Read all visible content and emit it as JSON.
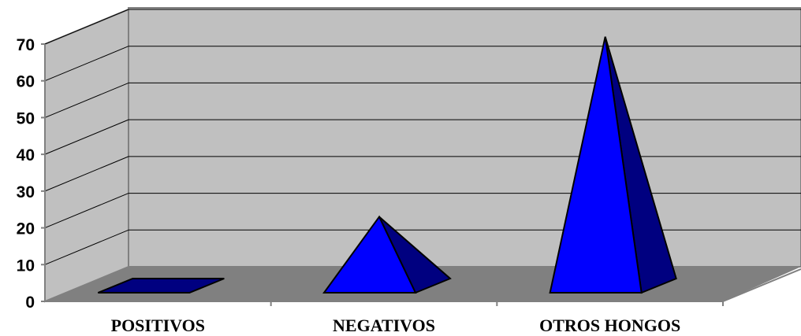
{
  "chart_data": {
    "type": "bar",
    "style": "3d-pyramid",
    "categories": [
      "POSITIVOS",
      "NEGATIVOS",
      "OTROS HONGOS"
    ],
    "values": [
      0,
      23,
      72
    ],
    "title": "",
    "xlabel": "",
    "ylabel": "",
    "ylim": [
      0,
      70
    ],
    "yticks": [
      "0",
      "10",
      "20",
      "30",
      "40",
      "50",
      "60",
      "70"
    ],
    "grid": true,
    "legend": "none",
    "colors": {
      "pyramid_front": "#0000ff",
      "pyramid_side": "#000080",
      "back_wall": "#c0c0c0",
      "side_wall": "#c0c0c0",
      "floor": "#808080",
      "gridline": "#000000"
    }
  }
}
